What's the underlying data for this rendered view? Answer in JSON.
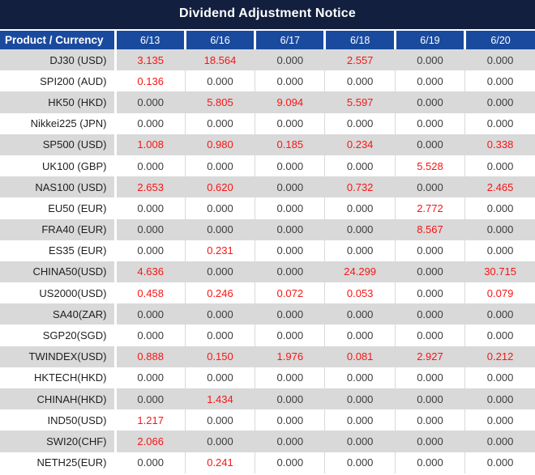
{
  "title": "Dividend Adjustment Notice",
  "table": {
    "product_header": "Product / Currency",
    "date_headers": [
      "6/13",
      "6/16",
      "6/17",
      "6/18",
      "6/19",
      "6/20"
    ],
    "rows": [
      {
        "product": "DJ30 (USD)",
        "values": [
          "3.135",
          "18.564",
          "0.000",
          "2.557",
          "0.000",
          "0.000"
        ]
      },
      {
        "product": "SPI200 (AUD)",
        "values": [
          "0.136",
          "0.000",
          "0.000",
          "0.000",
          "0.000",
          "0.000"
        ]
      },
      {
        "product": "HK50 (HKD)",
        "values": [
          "0.000",
          "5.805",
          "9.094",
          "5.597",
          "0.000",
          "0.000"
        ]
      },
      {
        "product": "Nikkei225 (JPN)",
        "values": [
          "0.000",
          "0.000",
          "0.000",
          "0.000",
          "0.000",
          "0.000"
        ]
      },
      {
        "product": "SP500 (USD)",
        "values": [
          "1.008",
          "0.980",
          "0.185",
          "0.234",
          "0.000",
          "0.338"
        ]
      },
      {
        "product": "UK100 (GBP)",
        "values": [
          "0.000",
          "0.000",
          "0.000",
          "0.000",
          "5.528",
          "0.000"
        ]
      },
      {
        "product": "NAS100 (USD)",
        "values": [
          "2.653",
          "0.620",
          "0.000",
          "0.732",
          "0.000",
          "2.465"
        ]
      },
      {
        "product": "EU50 (EUR)",
        "values": [
          "0.000",
          "0.000",
          "0.000",
          "0.000",
          "2.772",
          "0.000"
        ]
      },
      {
        "product": "FRA40 (EUR)",
        "values": [
          "0.000",
          "0.000",
          "0.000",
          "0.000",
          "8.567",
          "0.000"
        ]
      },
      {
        "product": "ES35 (EUR)",
        "values": [
          "0.000",
          "0.231",
          "0.000",
          "0.000",
          "0.000",
          "0.000"
        ]
      },
      {
        "product": "CHINA50(USD)",
        "values": [
          "4.636",
          "0.000",
          "0.000",
          "24.299",
          "0.000",
          "30.715"
        ]
      },
      {
        "product": "US2000(USD)",
        "values": [
          "0.458",
          "0.246",
          "0.072",
          "0.053",
          "0.000",
          "0.079"
        ]
      },
      {
        "product": "SA40(ZAR)",
        "values": [
          "0.000",
          "0.000",
          "0.000",
          "0.000",
          "0.000",
          "0.000"
        ]
      },
      {
        "product": "SGP20(SGD)",
        "values": [
          "0.000",
          "0.000",
          "0.000",
          "0.000",
          "0.000",
          "0.000"
        ]
      },
      {
        "product": "TWINDEX(USD)",
        "values": [
          "0.888",
          "0.150",
          "1.976",
          "0.081",
          "2.927",
          "0.212"
        ]
      },
      {
        "product": "HKTECH(HKD)",
        "values": [
          "0.000",
          "0.000",
          "0.000",
          "0.000",
          "0.000",
          "0.000"
        ]
      },
      {
        "product": "CHINAH(HKD)",
        "values": [
          "0.000",
          "1.434",
          "0.000",
          "0.000",
          "0.000",
          "0.000"
        ]
      },
      {
        "product": "IND50(USD)",
        "values": [
          "1.217",
          "0.000",
          "0.000",
          "0.000",
          "0.000",
          "0.000"
        ]
      },
      {
        "product": "SWI20(CHF)",
        "values": [
          "2.066",
          "0.000",
          "0.000",
          "0.000",
          "0.000",
          "0.000"
        ]
      },
      {
        "product": "NETH25(EUR)",
        "values": [
          "0.000",
          "0.241",
          "0.000",
          "0.000",
          "0.000",
          "0.000"
        ]
      }
    ]
  },
  "colors": {
    "title_bg": "#121F3E",
    "header_bg": "#1A4A9E",
    "row_alt_bg": "#D9D9D9",
    "row_bg": "#FFFFFF",
    "value_red": "#FA1414",
    "value_black": "#3C3C3C",
    "product_text": "#1F1F1F",
    "header_text": "#FFFFFF"
  }
}
